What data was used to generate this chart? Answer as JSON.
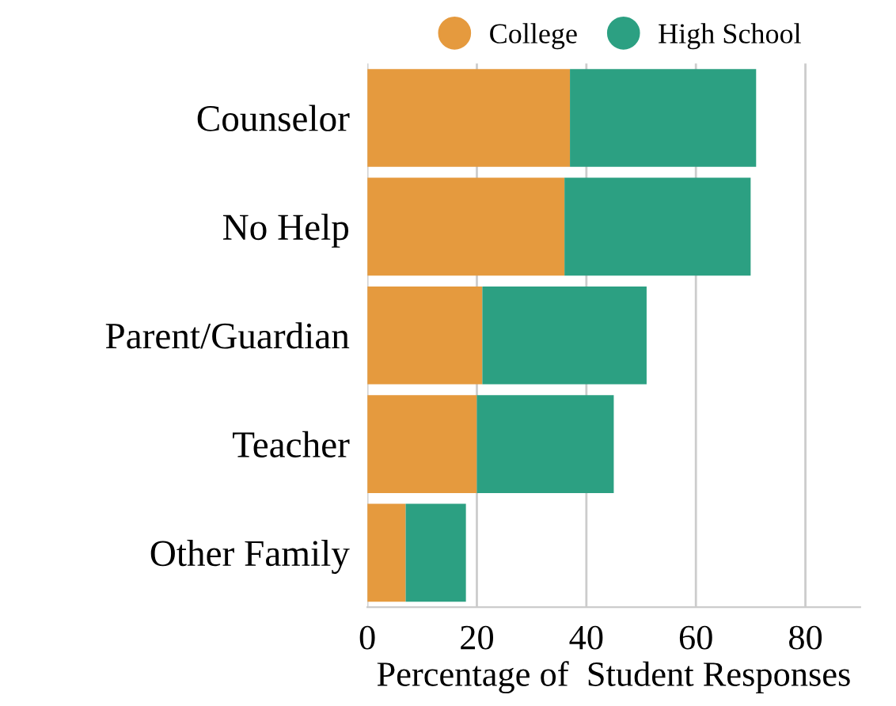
{
  "chart_data": {
    "type": "bar",
    "orientation": "horizontal",
    "stacked": true,
    "xlabel": "Percentage of  Student Responses",
    "categories": [
      "Counselor",
      "No Help",
      "Parent/Guardian",
      "Teacher",
      "Other Family"
    ],
    "series": [
      {
        "name": "College",
        "color": "#e59a3e",
        "values": [
          37,
          36,
          21,
          20,
          7
        ]
      },
      {
        "name": "High School",
        "color": "#2ca082",
        "values": [
          34,
          34,
          30,
          25,
          11
        ]
      }
    ],
    "xlim": [
      0,
      90
    ],
    "xticks": [
      0,
      20,
      40,
      60,
      80
    ],
    "grid": "x",
    "legend": "top"
  }
}
